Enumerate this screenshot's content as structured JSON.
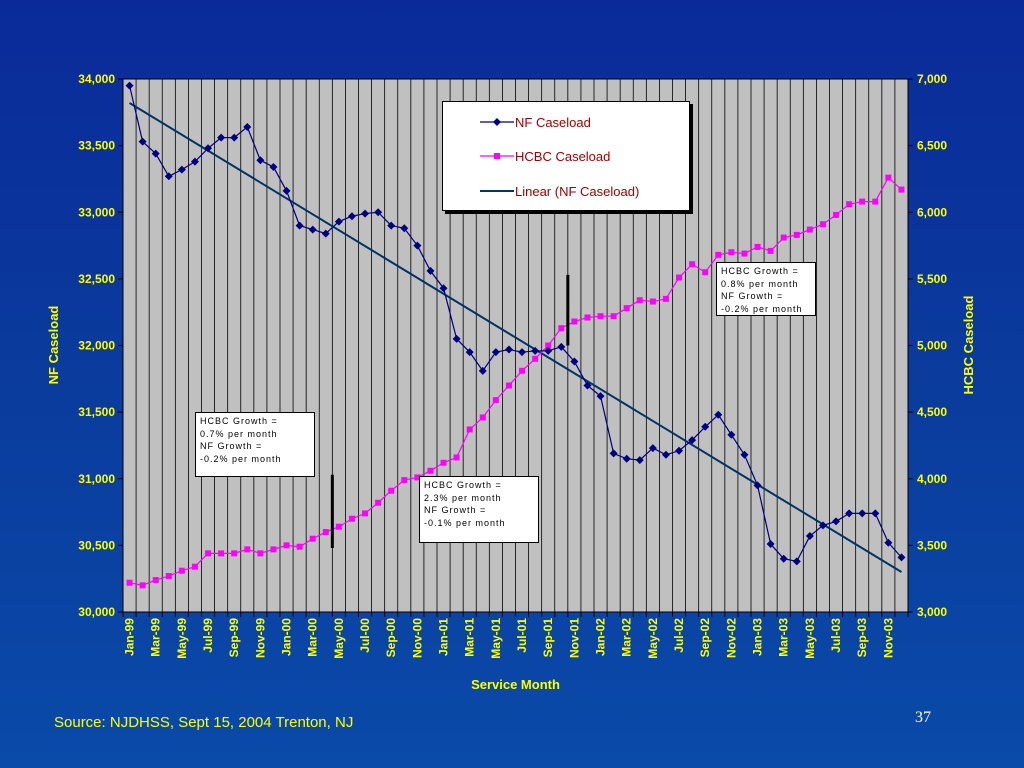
{
  "page": {
    "source": "Source: NJDHSS, Sept 15, 2004  Trenton, NJ",
    "page_number": "37"
  },
  "colors": {
    "background": "#0a3a9c",
    "plot_area": "#c0c0c0",
    "nf_series": "#000080",
    "hcbc_series": "#ff00ff",
    "trend_line": "#003366",
    "axis_text": "#ffff00"
  },
  "legend": {
    "items": [
      {
        "label": "NF Caseload",
        "symbol": "diamond-line",
        "color": "#000080"
      },
      {
        "label": "HCBC Caseload",
        "symbol": "square-line",
        "color": "#ff00ff"
      },
      {
        "label": "Linear (NF Caseload)",
        "symbol": "line",
        "color": "#003366"
      }
    ]
  },
  "notes": [
    {
      "lines": [
        "HCBC Growth =",
        "0.8% per month",
        "NF Growth =",
        "-0.2% per month"
      ]
    },
    {
      "lines": [
        "HCBC Growth =",
        "0.7% per month",
        "NF Growth =",
        "-0.2% per month"
      ]
    },
    {
      "lines": [
        "HCBC Growth =",
        "2.3% per month",
        "NF Growth =",
        "-0.1% per month"
      ]
    }
  ],
  "chart_data": {
    "type": "line",
    "title": "",
    "xlabel": "Service Month",
    "ylabel": "NF Caseload",
    "y2label": "HCBC Caseload",
    "ylim": [
      30000,
      34000
    ],
    "y2lim": [
      3000,
      7000
    ],
    "yticks": [
      "30,000",
      "30,500",
      "31,000",
      "31,500",
      "32,000",
      "32,500",
      "33,000",
      "33,500",
      "34,000"
    ],
    "y2ticks": [
      "3,000",
      "3,500",
      "4,000",
      "4,500",
      "5,000",
      "5,500",
      "6,000",
      "6,500",
      "7,000"
    ],
    "xtick_labels": [
      "Jan-99",
      "Mar-99",
      "May-99",
      "Jul-99",
      "Sep-99",
      "Nov-99",
      "Jan-00",
      "Mar-00",
      "May-00",
      "Jul-00",
      "Sep-00",
      "Nov-00",
      "Jan-01",
      "Mar-01",
      "May-01",
      "Jul-01",
      "Sep-01",
      "Nov-01",
      "Jan-02",
      "Mar-02",
      "May-02",
      "Jul-02",
      "Sep-02",
      "Nov-02",
      "Jan-03",
      "Mar-03",
      "May-03",
      "Jul-03",
      "Sep-03",
      "Nov-03"
    ],
    "grid": "vertical",
    "legend_position": "top-center",
    "series": [
      {
        "name": "NF Caseload",
        "axis": "left",
        "marker": "diamond",
        "values": [
          33950,
          33530,
          33440,
          33270,
          33320,
          33380,
          33480,
          33560,
          33560,
          33640,
          33390,
          33340,
          33160,
          32900,
          32870,
          32840,
          32930,
          32970,
          32990,
          33000,
          32900,
          32880,
          32750,
          32560,
          32430,
          32050,
          31950,
          31810,
          31950,
          31970,
          31950,
          31960,
          31960,
          31990,
          31880,
          31700,
          31620,
          31190,
          31150,
          31140,
          31230,
          31180,
          31210,
          31290,
          31390,
          31480,
          31330,
          31180,
          30950,
          30510,
          30400,
          30380,
          30570,
          30650,
          30680,
          30740,
          30740,
          30740,
          30520,
          30410
        ]
      },
      {
        "name": "HCBC Caseload",
        "axis": "right",
        "marker": "square",
        "values": [
          3220,
          3200,
          3240,
          3270,
          3310,
          3340,
          3440,
          3440,
          3440,
          3470,
          3440,
          3470,
          3500,
          3490,
          3550,
          3600,
          3640,
          3700,
          3740,
          3820,
          3910,
          3990,
          4010,
          4060,
          4120,
          4160,
          4370,
          4460,
          4590,
          4700,
          4810,
          4900,
          5000,
          5130,
          5180,
          5210,
          5220,
          5220,
          5280,
          5340,
          5330,
          5350,
          5510,
          5610,
          5550,
          5680,
          5700,
          5690,
          5740,
          5710,
          5810,
          5830,
          5870,
          5910,
          5980,
          6060,
          6080,
          6080,
          6260,
          6170
        ]
      },
      {
        "name": "Linear (NF Caseload)",
        "axis": "left",
        "type": "trend",
        "values": [
          33820,
          30300
        ]
      }
    ]
  }
}
